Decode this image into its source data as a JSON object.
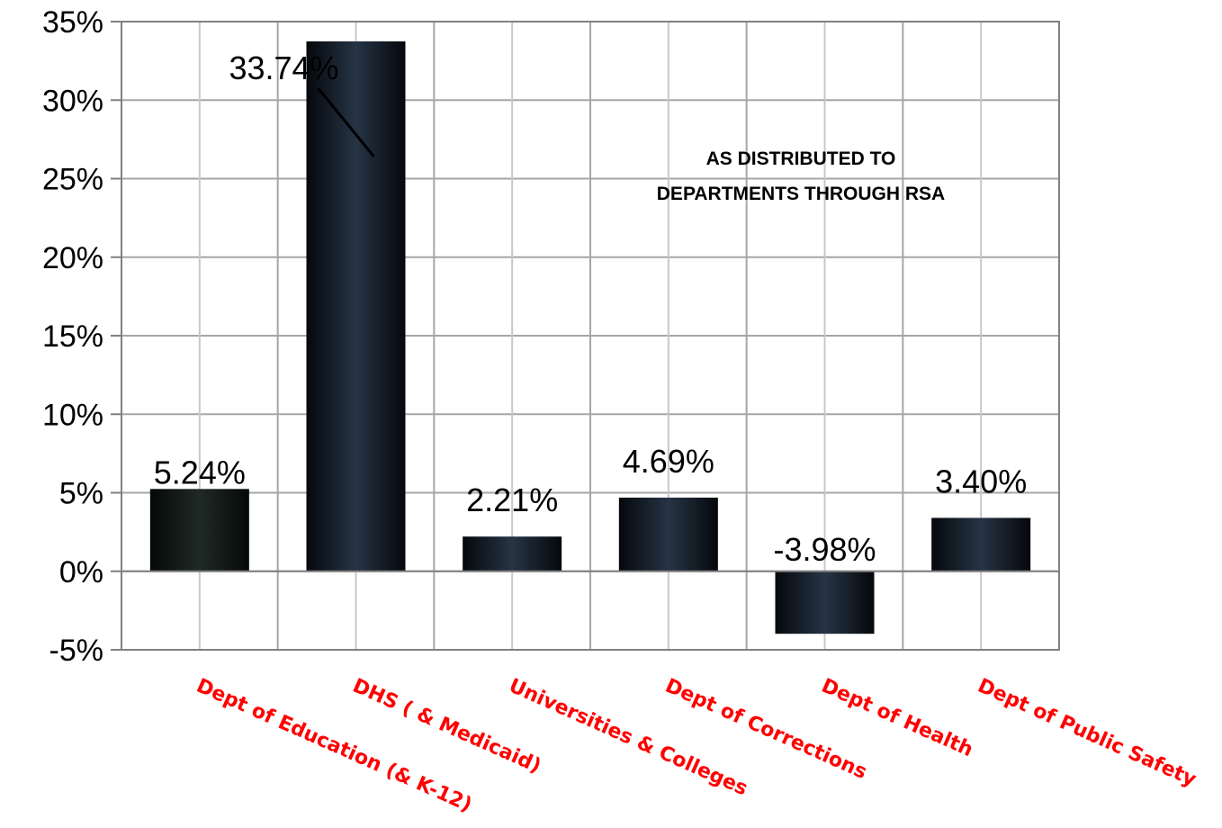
{
  "chart_data": {
    "type": "bar",
    "categories": [
      "Dept of Education (& K-12)",
      "DHS ( & Medicaid)",
      "Universities & Colleges",
      "Dept of Corrections",
      "Dept of Health",
      "Dept of Public Safety"
    ],
    "values": [
      5.24,
      33.74,
      2.21,
      4.69,
      -3.98,
      3.4
    ],
    "data_labels": [
      "5.24%",
      "33.74%",
      "2.21%",
      "4.69%",
      "-3.98%",
      "3.40%"
    ],
    "ylim": [
      -5,
      35
    ],
    "yticks": [
      -5,
      0,
      5,
      10,
      15,
      20,
      25,
      30,
      35
    ],
    "ytick_labels": [
      "-5%",
      "0%",
      "5%",
      "10%",
      "15%",
      "20%",
      "25%",
      "30%",
      "35%"
    ],
    "grid": true,
    "annotation": [
      "AS DISTRIBUTED TO",
      "DEPARTMENTS THROUGH RSA"
    ],
    "colors": {
      "bar_dark": "#0b1119",
      "bar_light": "#263445",
      "category_text": "#ff0000",
      "grid": "#a6a6a6",
      "axis": "#808080"
    }
  }
}
